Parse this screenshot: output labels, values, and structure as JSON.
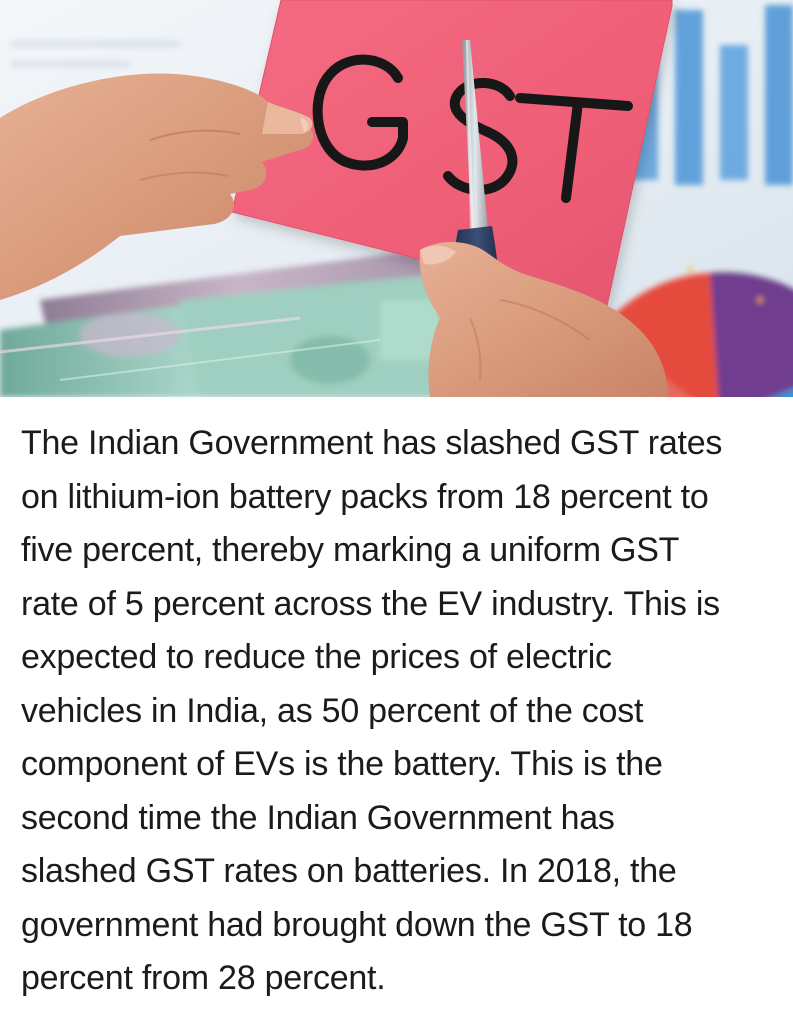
{
  "image": {
    "sign_text": "GST",
    "background_palette": {
      "card_pink": "#f2667d",
      "marker_black": "#171717",
      "banknote_green": "#96c7b8",
      "banknote_mauve": "#b8a1b8",
      "chart_blue": "#4b9be0",
      "chart_purple": "#6f3d8f",
      "chart_red": "#e54b3c",
      "skin": "#d89a7a"
    }
  },
  "article": {
    "lines": [
      "The Indian Government has slashed GST rates",
      "on lithium-ion battery packs from 18 percent to",
      "five percent, thereby marking a uniform GST",
      "rate of 5 percent across the EV industry. This is",
      "expected to reduce the prices of electric",
      "vehicles in India, as 50 percent of the cost",
      "component of EVs is the battery. This is the",
      "second time the Indian Government has",
      "slashed GST rates on batteries. In 2018, the",
      "government had brought down the GST to 18",
      "percent from 28 percent."
    ]
  }
}
